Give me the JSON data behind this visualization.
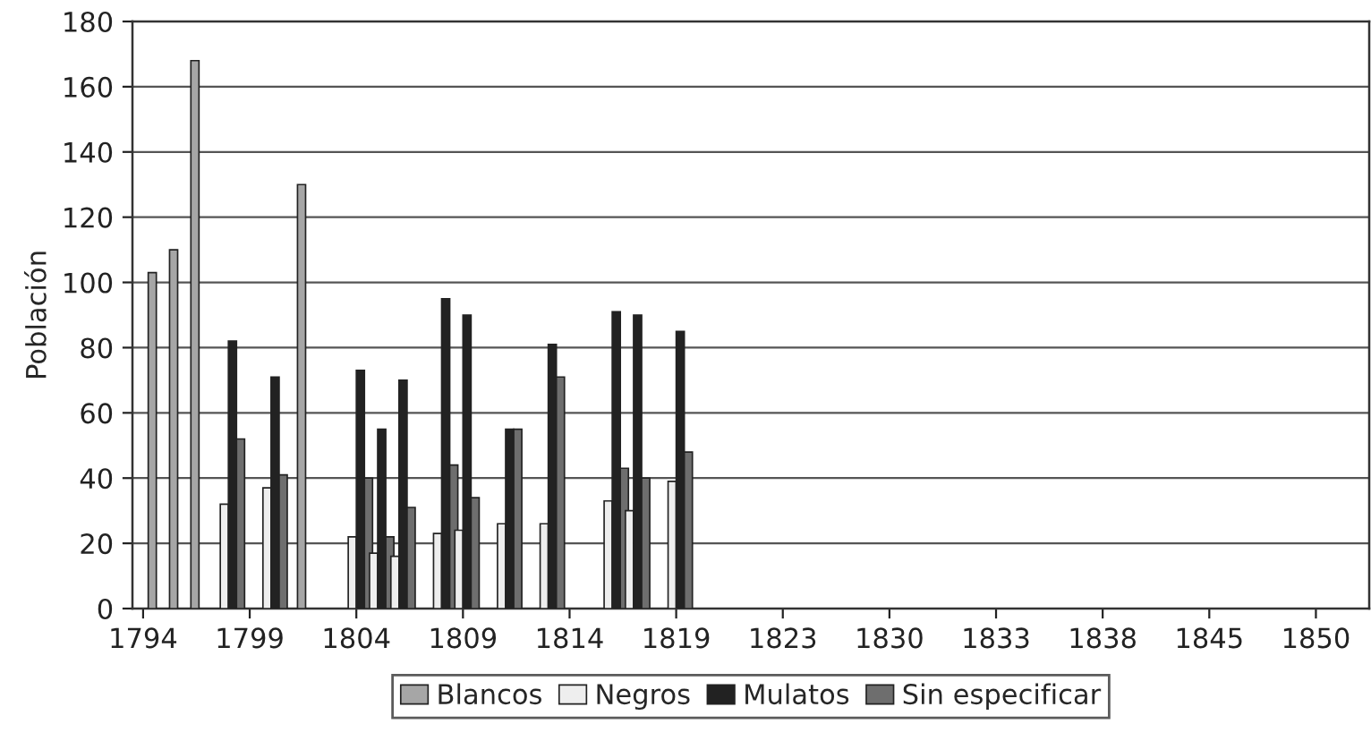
{
  "chart_data": {
    "type": "bar",
    "ylabel": "Población",
    "categories": [
      "1794",
      null,
      null,
      null,
      null,
      "1799",
      null,
      null,
      null,
      null,
      "1804",
      null,
      null,
      null,
      null,
      "1809",
      null,
      null,
      null,
      null,
      "1814",
      null,
      null,
      null,
      null,
      "1819",
      null,
      null,
      null,
      null,
      "1823",
      null,
      null,
      null,
      null,
      "1830",
      null,
      null,
      null,
      null,
      "1833",
      null,
      null,
      null,
      null,
      "1838",
      null,
      null,
      null,
      null,
      "1845",
      null,
      null,
      null,
      null,
      "1850",
      null,
      null
    ],
    "series": [
      {
        "name": "Blancos",
        "color": "#a6a6a6",
        "values": [
          null,
          103,
          110,
          168,
          null,
          null,
          null,
          null,
          130,
          null,
          null,
          null,
          null,
          null,
          null,
          null,
          null,
          null,
          null,
          null,
          null,
          null,
          null,
          null,
          null,
          null,
          null,
          null,
          null,
          null,
          null,
          null,
          null,
          null,
          null,
          null,
          null,
          null,
          null,
          null,
          null,
          null,
          null,
          null,
          null,
          null,
          null,
          null,
          null,
          null,
          null,
          null,
          null,
          null,
          null,
          null,
          null,
          null
        ]
      },
      {
        "name": "Negros",
        "color": "#eeeeee",
        "values": [
          null,
          null,
          null,
          null,
          32,
          null,
          37,
          null,
          null,
          null,
          22,
          17,
          16,
          null,
          23,
          24,
          null,
          26,
          null,
          26,
          null,
          null,
          33,
          30,
          null,
          39,
          null,
          null,
          null,
          null,
          null,
          null,
          null,
          null,
          null,
          null,
          null,
          null,
          null,
          null,
          null,
          null,
          null,
          null,
          null,
          null,
          null,
          null,
          null,
          null,
          null,
          null,
          null,
          null,
          null,
          null,
          null,
          null
        ]
      },
      {
        "name": "Mulatos",
        "color": "#222222",
        "values": [
          null,
          null,
          null,
          null,
          82,
          null,
          71,
          null,
          null,
          null,
          73,
          55,
          70,
          null,
          95,
          90,
          null,
          55,
          null,
          81,
          null,
          null,
          91,
          90,
          null,
          85,
          null,
          null,
          null,
          null,
          null,
          null,
          null,
          null,
          null,
          null,
          null,
          null,
          null,
          null,
          null,
          null,
          null,
          null,
          null,
          null,
          null,
          null,
          null,
          null,
          null,
          null,
          null,
          null,
          null,
          null,
          null,
          null
        ]
      },
      {
        "name": "Sin especificar",
        "color": "#6e6e6e",
        "values": [
          null,
          null,
          null,
          null,
          52,
          null,
          41,
          null,
          null,
          null,
          40,
          22,
          31,
          null,
          44,
          34,
          null,
          55,
          null,
          71,
          null,
          null,
          43,
          40,
          null,
          48,
          null,
          null,
          null,
          null,
          null,
          null,
          null,
          null,
          null,
          null,
          null,
          null,
          null,
          null,
          null,
          null,
          null,
          null,
          null,
          null,
          null,
          null,
          null,
          null,
          null,
          null,
          null,
          null,
          null,
          null,
          null,
          null
        ]
      }
    ],
    "ylim": [
      0,
      180
    ],
    "yticks": [
      0,
      20,
      40,
      60,
      80,
      100,
      120,
      140,
      160,
      180
    ],
    "grid": "y",
    "legend": "bottom"
  }
}
